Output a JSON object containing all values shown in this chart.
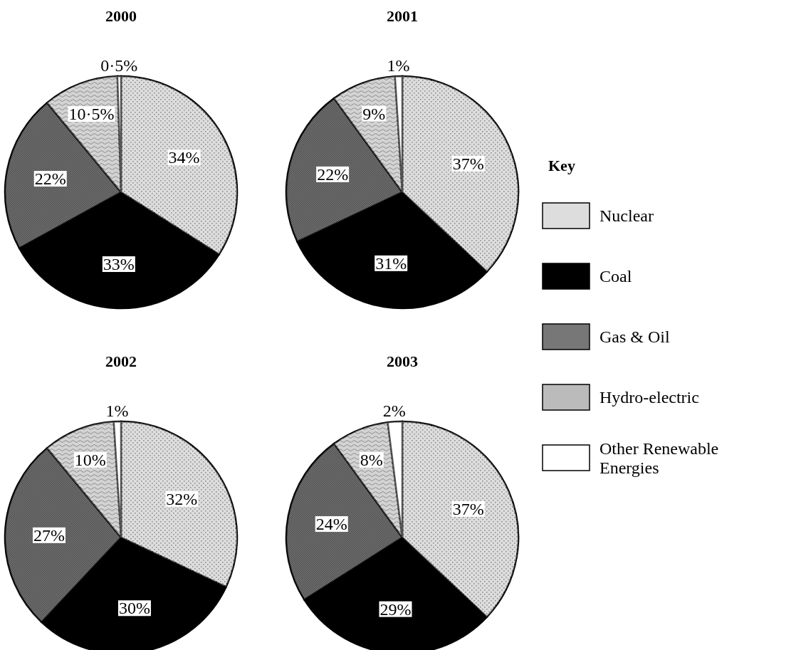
{
  "chart_data": [
    {
      "type": "pie",
      "title": "2000",
      "categories": [
        "Nuclear",
        "Coal",
        "Gas & Oil",
        "Hydro-electric",
        "Other Renewable Energies"
      ],
      "values": [
        34,
        33,
        22,
        10.5,
        0.5
      ],
      "value_labels": [
        "34%",
        "33%",
        "22%",
        "10·5%",
        "0·5%"
      ],
      "colors": [
        "#dddddd",
        "#000000",
        "#777777",
        "#bbbbbb",
        "#ffffff"
      ],
      "legend": "right",
      "legend_title": "Key"
    },
    {
      "type": "pie",
      "title": "2001",
      "categories": [
        null,
        null,
        null,
        null,
        null
      ],
      "values": [
        37,
        31,
        22,
        9,
        1
      ],
      "value_labels": [
        "37%",
        "31%",
        "22%",
        "9%",
        "1%"
      ],
      "colors": [
        "#dddddd",
        "#000000",
        "#777777",
        "#bbbbbb",
        "#ffffff"
      ]
    },
    {
      "type": "pie",
      "title": "2002",
      "categories": [
        null,
        null,
        null,
        null,
        null
      ],
      "values": [
        32,
        30,
        27,
        10,
        1
      ],
      "value_labels": [
        "32%",
        "30%",
        "27%",
        "10%",
        "1%"
      ],
      "colors": [
        "#dddddd",
        "#000000",
        "#777777",
        "#bbbbbb",
        "#ffffff"
      ]
    },
    {
      "type": "pie",
      "title": "2003",
      "categories": [
        null,
        null,
        null,
        null,
        null
      ],
      "values": [
        37,
        29,
        24,
        8,
        2
      ],
      "value_labels": [
        "37%",
        "29%",
        "24%",
        "8%",
        "2%"
      ],
      "colors": [
        "#dddddd",
        "#000000",
        "#777777",
        "#bbbbbb",
        "#ffffff"
      ]
    }
  ]
}
